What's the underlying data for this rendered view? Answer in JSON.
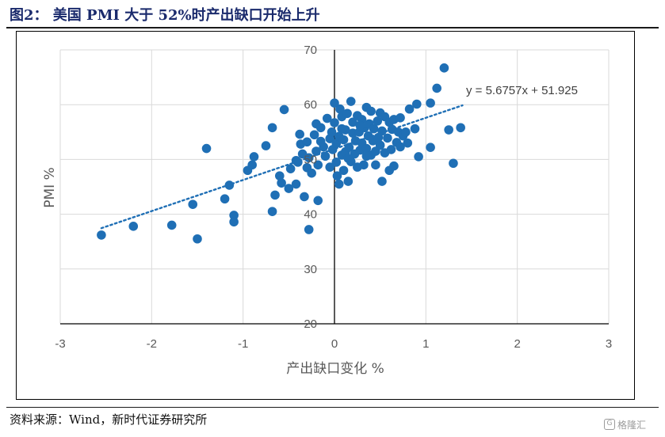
{
  "title": "图2： 美国 PMI 大于 52%时产出缺口开始上升",
  "source": "资料来源：Wind，新时代证券研究所",
  "watermark": "格隆汇",
  "chart_data": {
    "type": "scatter",
    "xlabel": "产出缺口变化 %",
    "ylabel": "PMI %",
    "xlim": [
      -3,
      3
    ],
    "ylim": [
      20,
      70
    ],
    "xticks": [
      "-3",
      "-2",
      "-1",
      "0",
      "1",
      "2",
      "3"
    ],
    "yticks": [
      "20",
      "30",
      "40",
      "50",
      "60",
      "70"
    ],
    "grid": true,
    "point_color": "#1f6fb5",
    "trendline": {
      "slope": 5.6757,
      "intercept": 51.925,
      "x_range": [
        -2.55,
        1.4
      ],
      "label": "y = 5.6757x + 51.925"
    },
    "points": [
      [
        -2.55,
        36.2
      ],
      [
        -2.2,
        37.8
      ],
      [
        -1.78,
        38.0
      ],
      [
        -1.5,
        35.5
      ],
      [
        -1.55,
        41.8
      ],
      [
        -1.4,
        52.0
      ],
      [
        -1.2,
        42.8
      ],
      [
        -1.15,
        45.3
      ],
      [
        -1.1,
        39.8
      ],
      [
        -1.1,
        38.6
      ],
      [
        -0.95,
        48.0
      ],
      [
        -0.9,
        49.0
      ],
      [
        -0.88,
        50.5
      ],
      [
        -0.75,
        52.5
      ],
      [
        -0.68,
        55.8
      ],
      [
        -0.68,
        40.5
      ],
      [
        -0.6,
        47.0
      ],
      [
        -0.65,
        43.5
      ],
      [
        -0.58,
        45.7
      ],
      [
        -0.55,
        59.1
      ],
      [
        -0.5,
        44.7
      ],
      [
        -0.48,
        48.3
      ],
      [
        -0.42,
        45.5
      ],
      [
        -0.4,
        49.5
      ],
      [
        -0.38,
        54.6
      ],
      [
        -0.37,
        52.8
      ],
      [
        -0.35,
        51.0
      ],
      [
        -0.33,
        43.2
      ],
      [
        -0.3,
        48.5
      ],
      [
        -0.3,
        53.2
      ],
      [
        -0.28,
        50.3
      ],
      [
        -0.25,
        47.5
      ],
      [
        -0.22,
        54.5
      ],
      [
        -0.2,
        51.5
      ],
      [
        -0.2,
        56.5
      ],
      [
        -0.18,
        49.0
      ],
      [
        -0.15,
        55.8
      ],
      [
        -0.12,
        52.3
      ],
      [
        -0.1,
        50.6
      ],
      [
        -0.08,
        57.5
      ],
      [
        -0.05,
        53.8
      ],
      [
        -0.05,
        48.6
      ],
      [
        -0.03,
        55.0
      ],
      [
        -0.02,
        51.8
      ],
      [
        0.0,
        60.3
      ],
      [
        0.0,
        56.7
      ],
      [
        0.02,
        52.9
      ],
      [
        0.02,
        49.5
      ],
      [
        0.03,
        47.0
      ],
      [
        0.05,
        54.2
      ],
      [
        0.05,
        45.5
      ],
      [
        0.06,
        59.2
      ],
      [
        0.08,
        50.8
      ],
      [
        0.08,
        57.8
      ],
      [
        0.1,
        53.6
      ],
      [
        0.1,
        48.0
      ],
      [
        0.12,
        55.4
      ],
      [
        0.12,
        51.4
      ],
      [
        0.14,
        58.4
      ],
      [
        0.15,
        46.0
      ],
      [
        0.16,
        52.2
      ],
      [
        0.18,
        60.6
      ],
      [
        0.18,
        49.6
      ],
      [
        0.2,
        54.8
      ],
      [
        0.2,
        56.8
      ],
      [
        0.22,
        51.0
      ],
      [
        0.23,
        53.4
      ],
      [
        0.25,
        58.0
      ],
      [
        0.25,
        48.6
      ],
      [
        0.27,
        55.0
      ],
      [
        0.28,
        51.7
      ],
      [
        0.3,
        57.3
      ],
      [
        0.3,
        53.0
      ],
      [
        0.32,
        49.0
      ],
      [
        0.33,
        55.8
      ],
      [
        0.35,
        52.0
      ],
      [
        0.35,
        59.5
      ],
      [
        0.37,
        54.3
      ],
      [
        0.38,
        56.5
      ],
      [
        0.4,
        50.8
      ],
      [
        0.4,
        58.8
      ],
      [
        0.42,
        53.4
      ],
      [
        0.43,
        55.6
      ],
      [
        0.45,
        49.0
      ],
      [
        0.45,
        51.5
      ],
      [
        0.47,
        57.0
      ],
      [
        0.48,
        54.0
      ],
      [
        0.5,
        58.5
      ],
      [
        0.5,
        52.6
      ],
      [
        0.52,
        55.2
      ],
      [
        0.52,
        46.0
      ],
      [
        0.55,
        57.8
      ],
      [
        0.55,
        51.2
      ],
      [
        0.58,
        53.9
      ],
      [
        0.6,
        56.8
      ],
      [
        0.6,
        48.0
      ],
      [
        0.62,
        51.8
      ],
      [
        0.63,
        55.5
      ],
      [
        0.65,
        57.3
      ],
      [
        0.65,
        48.8
      ],
      [
        0.68,
        53.1
      ],
      [
        0.7,
        55.0
      ],
      [
        0.72,
        52.3
      ],
      [
        0.72,
        57.6
      ],
      [
        0.75,
        54.3
      ],
      [
        0.78,
        55.0
      ],
      [
        0.8,
        53.0
      ],
      [
        0.82,
        59.2
      ],
      [
        0.88,
        55.6
      ],
      [
        0.9,
        60.1
      ],
      [
        0.92,
        50.5
      ],
      [
        1.05,
        52.2
      ],
      [
        1.05,
        60.3
      ],
      [
        1.12,
        63.0
      ],
      [
        1.2,
        66.7
      ],
      [
        1.25,
        55.4
      ],
      [
        1.3,
        49.3
      ],
      [
        1.38,
        55.8
      ],
      [
        -0.28,
        37.2
      ],
      [
        -0.18,
        42.5
      ],
      [
        -0.42,
        49.8
      ],
      [
        0.15,
        50.2
      ],
      [
        0.35,
        50.6
      ],
      [
        -0.15,
        53.3
      ],
      [
        0.08,
        55.6
      ],
      [
        0.28,
        56.2
      ]
    ]
  }
}
